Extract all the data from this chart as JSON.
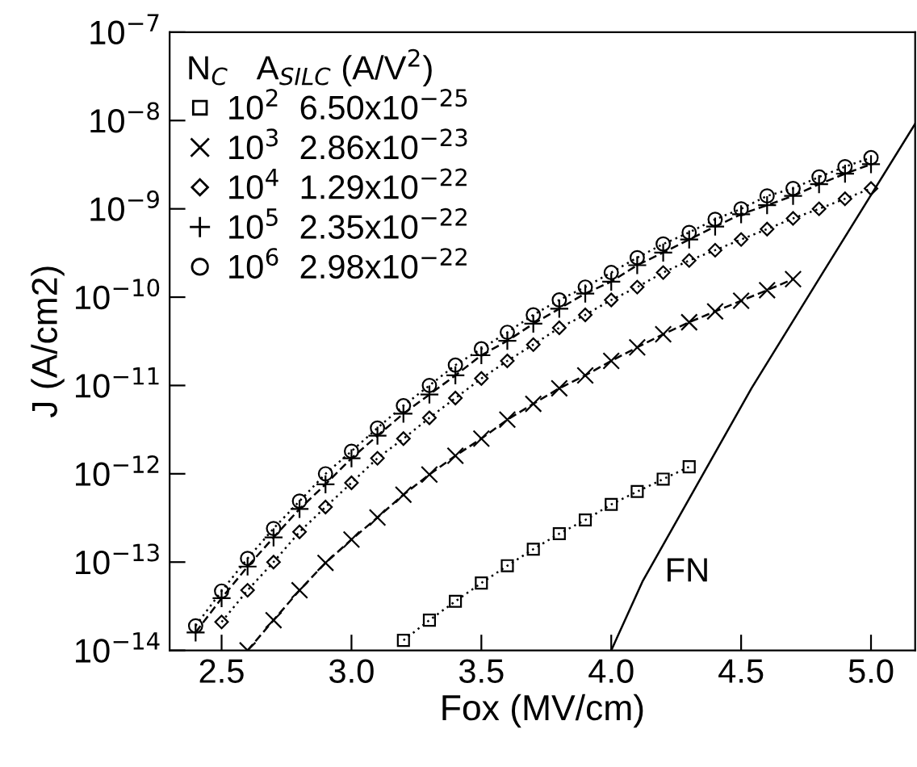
{
  "chart_data": {
    "type": "line",
    "xlabel": "Fox (MV/cm)",
    "ylabel": "J (A/cm2)",
    "legend_title": "N$_{C}$   A$_{SILC}$ (A/V$^{2}$)",
    "legend": "top left",
    "log": "y",
    "grid": false,
    "xlim": [
      2.3,
      5.17
    ],
    "xticks": [
      {
        "value": 2.5,
        "label": "2.5"
      },
      {
        "value": 3.0,
        "label": "3.0"
      },
      {
        "value": 3.5,
        "label": "3.5"
      },
      {
        "value": 4.0,
        "label": "4.0"
      },
      {
        "value": 4.5,
        "label": "4.5"
      },
      {
        "value": 5.0,
        "label": "5.0"
      }
    ],
    "ylim": [
      1e-14,
      1e-07
    ],
    "yticks": [
      {
        "value": 1e-14,
        "label": "10$^{−14}$"
      },
      {
        "value": 1e-13,
        "label": "10$^{−13}$"
      },
      {
        "value": 1e-12,
        "label": "10$^{−12}$"
      },
      {
        "value": 1e-11,
        "label": "10$^{−11}$"
      },
      {
        "value": 1e-10,
        "label": "10$^{−10}$"
      },
      {
        "value": 1e-09,
        "label": "10$^{−9}$"
      },
      {
        "value": 1e-08,
        "label": "10$^{−8}$"
      },
      {
        "value": 1e-07,
        "label": "10$^{−7}$"
      }
    ],
    "series": [
      {
        "name": "10$^{2}$  6.50x10$^{−25}$",
        "color": "#000000",
        "marker": "square",
        "line_style": "dotted",
        "x": [
          3.2,
          3.3,
          3.4,
          3.5,
          3.6,
          3.7,
          3.8,
          3.9,
          4.0,
          4.1,
          4.2,
          4.3
        ],
        "values": [
          1.3e-14,
          2.2e-14,
          3.6e-14,
          5.8e-14,
          9.1e-14,
          1.4e-13,
          2.1e-13,
          3e-13,
          4.5e-13,
          6.3e-13,
          8.7e-13,
          1.2e-12
        ]
      },
      {
        "name": "10$^{3}$  2.86x10$^{−23}$",
        "color": "#000000",
        "marker": "cross",
        "line_style": "dashed",
        "x": [
          2.6,
          2.7,
          2.8,
          2.9,
          3.0,
          3.1,
          3.2,
          3.3,
          3.4,
          3.5,
          3.6,
          3.7,
          3.8,
          3.9,
          4.0,
          4.1,
          4.2,
          4.3,
          4.4,
          4.5,
          4.6,
          4.7
        ],
        "values": [
          1e-14,
          2.2e-14,
          4.8e-14,
          9.8e-14,
          1.8e-13,
          3.2e-13,
          5.8e-13,
          9.8e-13,
          1.6e-12,
          2.5e-12,
          4.1e-12,
          6.2e-12,
          9.3e-12,
          1.3e-11,
          1.9e-11,
          2.7e-11,
          3.8e-11,
          5.2e-11,
          6.9e-11,
          9.1e-11,
          1.2e-10,
          1.6e-10
        ]
      },
      {
        "name": "10$^{4}$  1.29x10$^{−22}$",
        "color": "#000000",
        "marker": "diamond",
        "line_style": "dotted",
        "x": [
          2.5,
          2.6,
          2.7,
          2.8,
          2.9,
          3.0,
          3.1,
          3.2,
          3.3,
          3.4,
          3.5,
          3.6,
          3.7,
          3.8,
          3.9,
          4.0,
          4.1,
          4.2,
          4.3,
          4.4,
          4.5,
          4.6,
          4.7,
          4.8,
          4.9,
          5.0
        ],
        "values": [
          2.1e-14,
          4.8e-14,
          1e-13,
          2.2e-13,
          4.2e-13,
          7.9e-13,
          1.5e-12,
          2.5e-12,
          4.3e-12,
          7.2e-12,
          1.2e-11,
          1.9e-11,
          2.9e-11,
          4.5e-11,
          6.3e-11,
          9.3e-11,
          1.3e-10,
          1.9e-10,
          2.6e-10,
          3.4e-10,
          4.5e-10,
          5.9e-10,
          7.8e-10,
          1e-09,
          1.3e-09,
          1.7e-09
        ]
      },
      {
        "name": "10$^{5}$  2.35x10$^{−22}$",
        "color": "#000000",
        "marker": "plus",
        "line_style": "dashed",
        "x": [
          2.4,
          2.5,
          2.6,
          2.7,
          2.8,
          2.9,
          3.0,
          3.1,
          3.2,
          3.3,
          3.4,
          3.5,
          3.6,
          3.7,
          3.8,
          3.9,
          4.0,
          4.1,
          4.2,
          4.3,
          4.4,
          4.5,
          4.6,
          4.7,
          4.8,
          4.9,
          5.0
        ],
        "values": [
          1.6e-14,
          3.9e-14,
          8.9e-14,
          1.9e-13,
          4e-13,
          7.6e-13,
          1.5e-12,
          2.7e-12,
          4.8e-12,
          7.9e-12,
          1.3e-11,
          2.2e-11,
          3.2e-11,
          5e-11,
          7.4e-11,
          1.1e-10,
          1.5e-10,
          2.3e-10,
          3.2e-10,
          4.5e-10,
          6.3e-10,
          8.7e-10,
          1.1e-09,
          1.4e-09,
          1.9e-09,
          2.5e-09,
          3.2e-09
        ]
      },
      {
        "name": "10$^{6}$  2.98x10$^{−22}$",
        "color": "#000000",
        "marker": "circle",
        "line_style": "dotted",
        "x": [
          2.4,
          2.5,
          2.6,
          2.7,
          2.8,
          2.9,
          3.0,
          3.1,
          3.2,
          3.3,
          3.4,
          3.5,
          3.6,
          3.7,
          3.8,
          3.9,
          4.0,
          4.1,
          4.2,
          4.3,
          4.4,
          4.5,
          4.6,
          4.7,
          4.8,
          4.9,
          5.0
        ],
        "values": [
          1.9e-14,
          4.7e-14,
          1.1e-13,
          2.4e-13,
          4.9e-13,
          1e-12,
          1.8e-12,
          3.3e-12,
          5.9e-12,
          1e-11,
          1.7e-11,
          2.6e-11,
          4e-11,
          6.3e-11,
          9.3e-11,
          1.3e-10,
          1.9e-10,
          2.8e-10,
          4e-10,
          5.4e-10,
          7.6e-10,
          1e-09,
          1.4e-09,
          1.7e-09,
          2.3e-09,
          3e-09,
          3.8e-09
        ]
      },
      {
        "name": "FN",
        "color": "#000000",
        "marker": "none",
        "line_style": "solid",
        "x": [
          4.0,
          4.12,
          4.54,
          4.81,
          5.17
        ],
        "values": [
          1e-14,
          6e-14,
          9.3e-12,
          1.8e-10,
          9.2e-09
        ]
      }
    ]
  }
}
